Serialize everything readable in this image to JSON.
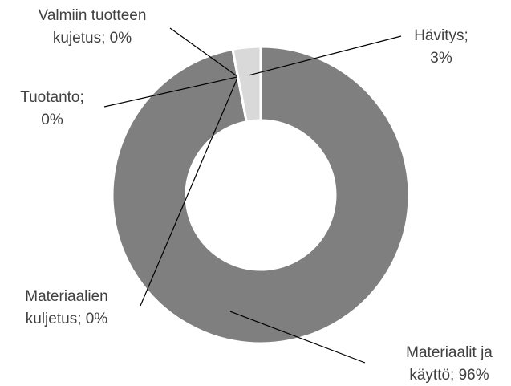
{
  "chart_data": {
    "type": "donut",
    "values": [
      96,
      0,
      0,
      0,
      3
    ],
    "value_labels": [
      [
        "Materiaalit ja",
        "käyttö; 96%"
      ],
      [
        "Materiaalien",
        "kuljetus; 0%"
      ],
      [
        "Tuotanto;",
        "0%"
      ],
      [
        "Valmiin tuotteen",
        "kujetus; 0%"
      ],
      [
        "Hävitys;",
        "3%"
      ]
    ],
    "colors": [
      "#7f7f7f",
      "#7f7f7f",
      "#7f7f7f",
      "#7f7f7f",
      "#d9d9d9"
    ]
  }
}
